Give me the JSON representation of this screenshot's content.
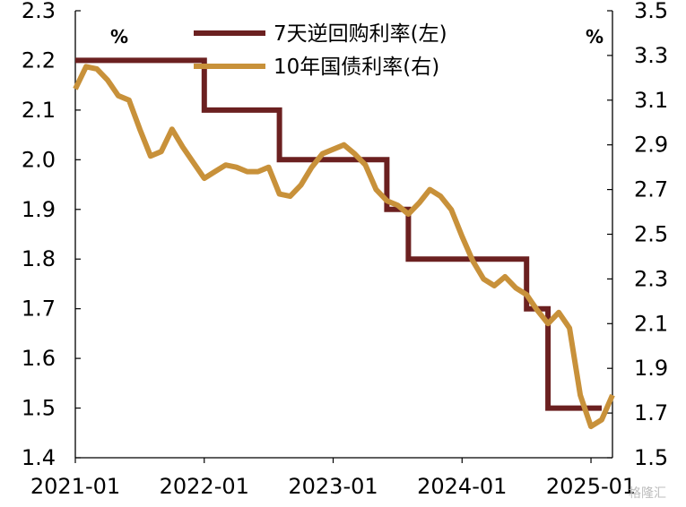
{
  "chart_data": {
    "type": "line",
    "x_ticks": [
      "2021-01",
      "2022-01",
      "2023-01",
      "2024-01",
      "2025-01"
    ],
    "left_axis": {
      "unit": "%",
      "range": [
        1.4,
        2.3
      ],
      "ticks": [
        "1.4",
        "1.5",
        "1.6",
        "1.7",
        "1.8",
        "1.9",
        "2.0",
        "2.1",
        "2.2",
        "2.3"
      ]
    },
    "right_axis": {
      "unit": "%",
      "range": [
        1.5,
        3.5
      ],
      "ticks": [
        "1.5",
        "1.7",
        "1.9",
        "2.1",
        "2.3",
        "2.5",
        "2.7",
        "2.9",
        "3.1",
        "3.3",
        "3.5"
      ]
    },
    "series": [
      {
        "name": "7天逆回购利率(左)",
        "axis": "left",
        "color": "#6b2020",
        "step": true,
        "points": [
          [
            "2021-01",
            2.2
          ],
          [
            "2022-01",
            2.2
          ],
          [
            "2022-01",
            2.1
          ],
          [
            "2022-08",
            2.1
          ],
          [
            "2022-08",
            2.0
          ],
          [
            "2023-06",
            2.0
          ],
          [
            "2023-06",
            1.9
          ],
          [
            "2023-08",
            1.9
          ],
          [
            "2023-08",
            1.8
          ],
          [
            "2024-07",
            1.8
          ],
          [
            "2024-07",
            1.7
          ],
          [
            "2024-09",
            1.7
          ],
          [
            "2024-09",
            1.5
          ],
          [
            "2025-02",
            1.5
          ]
        ]
      },
      {
        "name": "10年国债利率(右)",
        "axis": "right",
        "color": "#c8913a",
        "points": [
          [
            "2021-01",
            3.15
          ],
          [
            "2021-02",
            3.25
          ],
          [
            "2021-03",
            3.24
          ],
          [
            "2021-04",
            3.19
          ],
          [
            "2021-05",
            3.12
          ],
          [
            "2021-06",
            3.1
          ],
          [
            "2021-07",
            2.97
          ],
          [
            "2021-08",
            2.85
          ],
          [
            "2021-09",
            2.87
          ],
          [
            "2021-10",
            2.97
          ],
          [
            "2021-11",
            2.89
          ],
          [
            "2021-12",
            2.82
          ],
          [
            "2022-01",
            2.75
          ],
          [
            "2022-02",
            2.78
          ],
          [
            "2022-03",
            2.81
          ],
          [
            "2022-04",
            2.8
          ],
          [
            "2022-05",
            2.78
          ],
          [
            "2022-06",
            2.78
          ],
          [
            "2022-07",
            2.8
          ],
          [
            "2022-08",
            2.68
          ],
          [
            "2022-09",
            2.67
          ],
          [
            "2022-10",
            2.72
          ],
          [
            "2022-11",
            2.8
          ],
          [
            "2022-12",
            2.86
          ],
          [
            "2023-01",
            2.88
          ],
          [
            "2023-02",
            2.9
          ],
          [
            "2023-03",
            2.86
          ],
          [
            "2023-04",
            2.81
          ],
          [
            "2023-05",
            2.7
          ],
          [
            "2023-06",
            2.65
          ],
          [
            "2023-07",
            2.63
          ],
          [
            "2023-08",
            2.59
          ],
          [
            "2023-09",
            2.64
          ],
          [
            "2023-10",
            2.7
          ],
          [
            "2023-11",
            2.67
          ],
          [
            "2023-12",
            2.61
          ],
          [
            "2024-01",
            2.49
          ],
          [
            "2024-02",
            2.38
          ],
          [
            "2024-03",
            2.3
          ],
          [
            "2024-04",
            2.27
          ],
          [
            "2024-05",
            2.31
          ],
          [
            "2024-06",
            2.26
          ],
          [
            "2024-07",
            2.23
          ],
          [
            "2024-08",
            2.16
          ],
          [
            "2024-09",
            2.1
          ],
          [
            "2024-10",
            2.15
          ],
          [
            "2024-11",
            2.08
          ],
          [
            "2024-12",
            1.78
          ],
          [
            "2025-01",
            1.64
          ],
          [
            "2025-02",
            1.67
          ],
          [
            "2025-03",
            1.78
          ]
        ]
      }
    ]
  },
  "watermark": "格隆汇"
}
